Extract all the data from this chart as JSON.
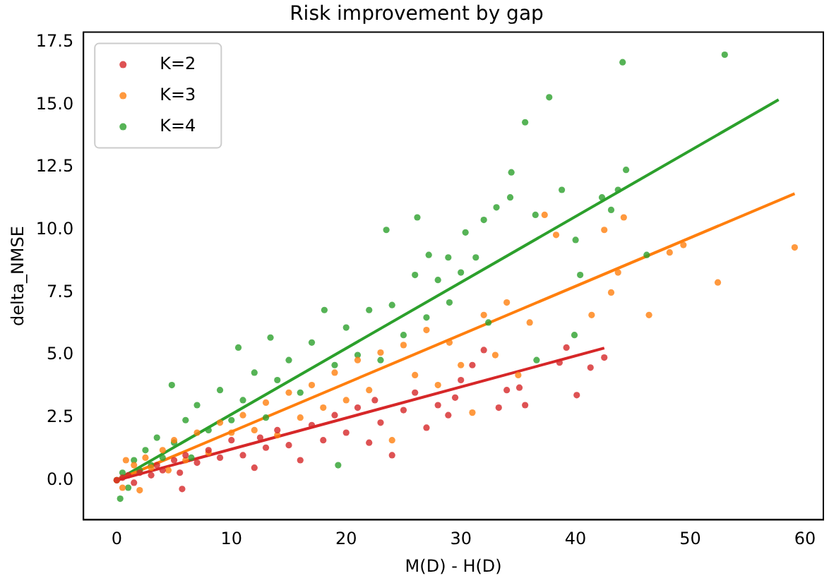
{
  "chart_data": {
    "type": "scatter",
    "title": "Risk improvement by gap",
    "xlabel": "M(D) - H(D)",
    "ylabel": "delta_NMSE",
    "xlim": [
      -2.9,
      61.6
    ],
    "ylim": [
      -1.58,
      17.9
    ],
    "xticks": [
      0,
      10,
      20,
      30,
      40,
      50,
      60
    ],
    "yticks": [
      {
        "value": 0,
        "label": "0.0"
      },
      {
        "value": 2.5,
        "label": "2.5"
      },
      {
        "value": 5,
        "label": "5.0"
      },
      {
        "value": 7.5,
        "label": "7.5"
      },
      {
        "value": 10,
        "label": "10.0"
      },
      {
        "value": 12.5,
        "label": "12.5"
      },
      {
        "value": 15,
        "label": "15.0"
      },
      {
        "value": 17.5,
        "label": "17.5"
      }
    ],
    "grid": false,
    "legend": "top left",
    "marker": "circle",
    "series": [
      {
        "name": "K=2",
        "color": "#d62728",
        "x": [
          0,
          0.5,
          1,
          1.5,
          2,
          3,
          3.5,
          4,
          5,
          5.5,
          5.7,
          6,
          7,
          8,
          9,
          10,
          11,
          12,
          12.5,
          13,
          14,
          15,
          16,
          17,
          18,
          19,
          20,
          21,
          22,
          22.5,
          23,
          24,
          25,
          26,
          27,
          28,
          28.9,
          29.5,
          30,
          31,
          32,
          33.3,
          34,
          35.1,
          35.6,
          38.6,
          39.2,
          40.1,
          41.3,
          42.5
        ],
        "values": [
          0,
          0.1,
          0.2,
          -0.1,
          0.3,
          0.2,
          0.6,
          0.4,
          0.8,
          0.3,
          -0.35,
          1.0,
          0.7,
          1.2,
          0.9,
          1.6,
          1.0,
          0.5,
          1.7,
          1.3,
          2.0,
          1.4,
          0.8,
          2.2,
          1.6,
          2.6,
          1.9,
          2.9,
          1.5,
          3.2,
          2.3,
          1.0,
          2.8,
          3.5,
          2.1,
          3.0,
          2.6,
          3.3,
          4.0,
          4.6,
          5.2,
          2.9,
          3.6,
          3.7,
          3.0,
          4.7,
          5.3,
          3.4,
          4.5,
          4.9
        ]
      },
      {
        "name": "K=3",
        "color": "#ff7f0e",
        "x": [
          0,
          0.5,
          0.8,
          1.5,
          2,
          2.5,
          3,
          4,
          4.5,
          5,
          6,
          7,
          8,
          9,
          10,
          11,
          12,
          13,
          14,
          15,
          16,
          17,
          18,
          19,
          20,
          21,
          22,
          23,
          24,
          25,
          26,
          27,
          28,
          29,
          30,
          31,
          32,
          33,
          34,
          35,
          36,
          37.3,
          38.3,
          41.4,
          42.5,
          43.1,
          43.7,
          44.2,
          46.4,
          48.2,
          49.4,
          52.4,
          59.1
        ],
        "values": [
          0,
          -0.3,
          0.8,
          0.6,
          -0.4,
          0.9,
          0.5,
          1.2,
          0.4,
          1.6,
          0.8,
          1.9,
          1.1,
          2.3,
          1.9,
          2.6,
          2.0,
          3.1,
          1.8,
          3.5,
          2.5,
          3.8,
          2.9,
          4.3,
          3.2,
          4.8,
          3.6,
          5.1,
          1.6,
          5.4,
          4.2,
          6.0,
          3.8,
          5.5,
          4.6,
          2.7,
          6.6,
          5.0,
          7.1,
          4.2,
          6.3,
          10.6,
          9.8,
          6.6,
          10.0,
          7.5,
          8.3,
          10.5,
          6.6,
          9.1,
          9.4,
          7.9,
          9.3
        ]
      },
      {
        "name": "K=4",
        "color": "#2ca02c",
        "x": [
          0,
          0.3,
          0.5,
          1,
          1.5,
          2,
          2.5,
          3,
          3.5,
          4,
          4.8,
          5,
          6,
          6.5,
          7,
          8,
          9,
          10,
          10.6,
          11,
          12,
          13,
          13.4,
          14,
          15,
          16,
          17,
          18.1,
          19,
          19.3,
          20,
          21,
          22,
          23,
          23.5,
          24,
          25,
          26,
          26.2,
          27,
          27.2,
          28,
          28.9,
          29,
          30,
          30.4,
          31.3,
          32,
          32.4,
          33.1,
          34.3,
          34.4,
          35.6,
          36.5,
          36.6,
          37.7,
          38.8,
          39.9,
          40.0,
          40.4,
          42.3,
          43.1,
          43.7,
          44.1,
          44.4,
          46.2,
          53.0
        ],
        "values": [
          0,
          -0.74,
          0.3,
          -0.3,
          0.8,
          0.4,
          1.2,
          0.6,
          1.7,
          0.9,
          3.8,
          1.5,
          2.4,
          0.9,
          3.0,
          2.0,
          3.6,
          2.4,
          5.3,
          3.2,
          4.3,
          2.5,
          5.7,
          4.0,
          4.8,
          3.5,
          5.5,
          6.8,
          4.6,
          0.6,
          6.1,
          5.0,
          6.8,
          4.8,
          10.0,
          7.0,
          5.8,
          8.2,
          10.5,
          6.5,
          9.0,
          8.0,
          8.9,
          7.1,
          8.3,
          9.9,
          8.9,
          10.4,
          6.3,
          10.9,
          11.3,
          12.3,
          14.3,
          10.6,
          4.8,
          15.3,
          11.6,
          5.8,
          9.6,
          8.2,
          11.3,
          10.8,
          11.6,
          16.7,
          12.4,
          9.0,
          17.0
        ]
      },
      {
        "type": "line",
        "marker": "none",
        "color": "#d62728",
        "x": [
          0,
          42.5
        ],
        "values": [
          0,
          5.28
        ]
      },
      {
        "type": "line",
        "marker": "none",
        "color": "#ff7f0e",
        "x": [
          0,
          59.1
        ],
        "values": [
          0,
          11.45
        ]
      },
      {
        "type": "line",
        "marker": "none",
        "color": "#2ca02c",
        "x": [
          0,
          57.7
        ],
        "values": [
          0,
          15.2
        ]
      }
    ]
  }
}
